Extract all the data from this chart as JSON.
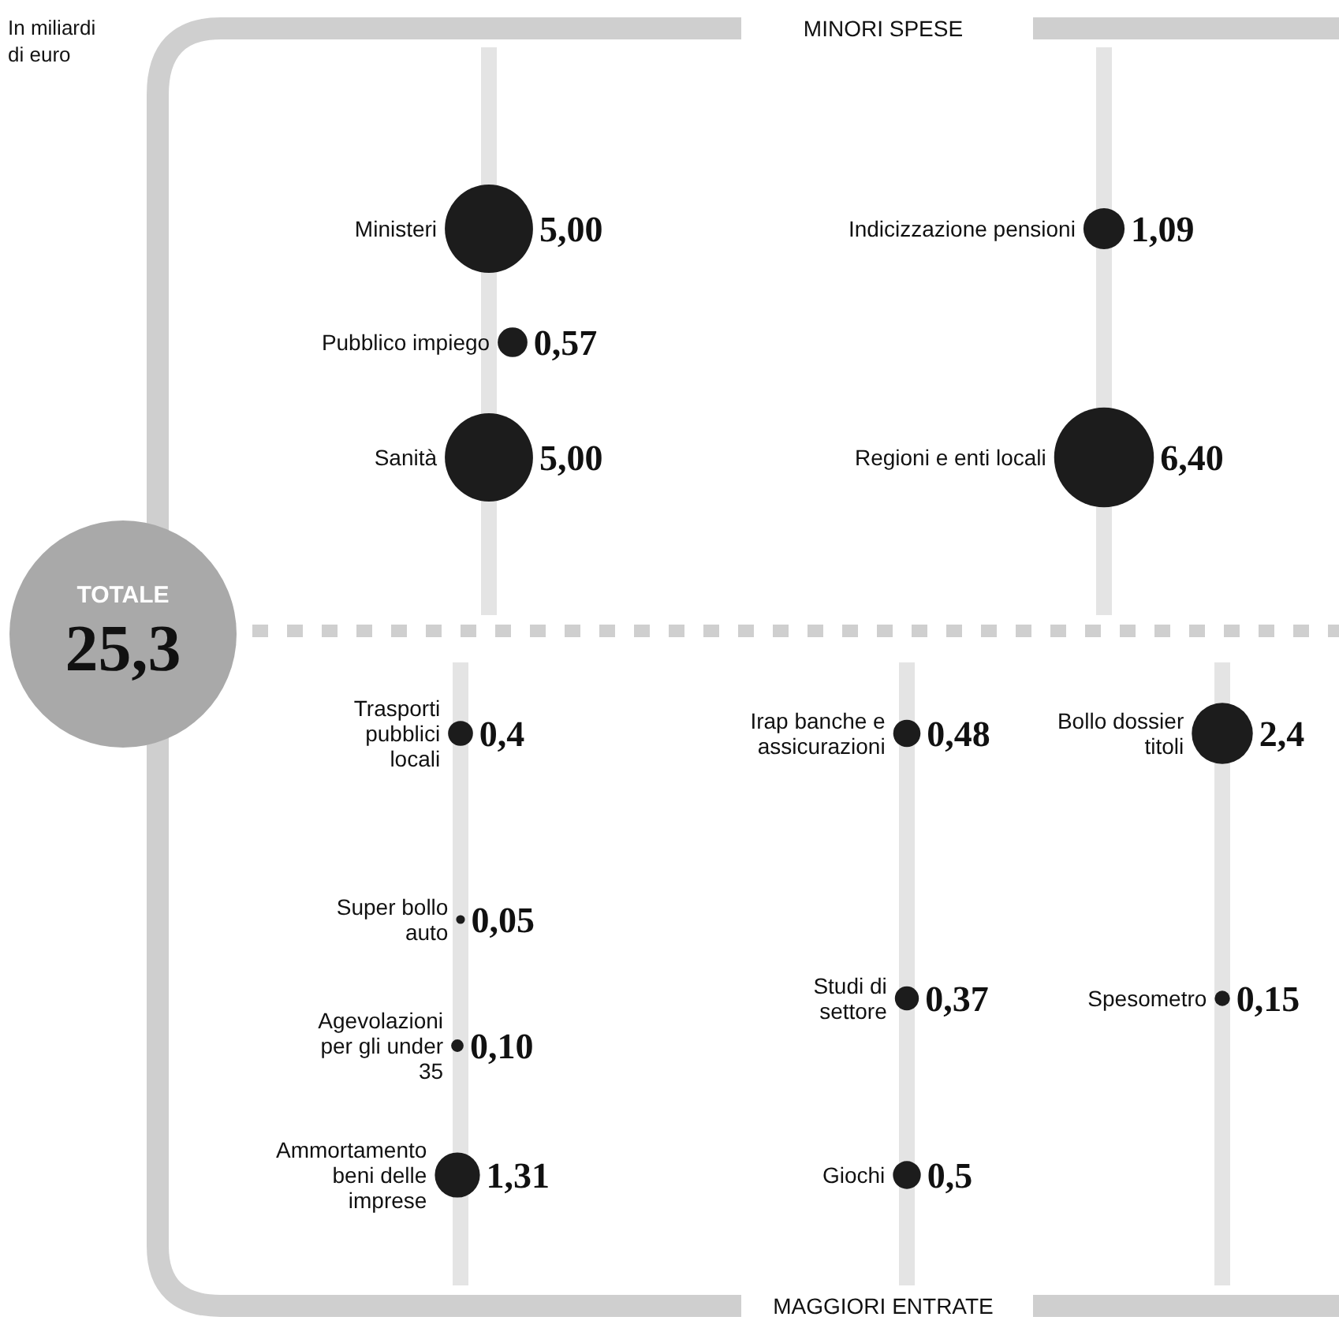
{
  "chart_data": [
    {
      "type": "other",
      "title": "In miliardi di euro",
      "subtitle": "MINORI SPESE",
      "annotations": [
        "TOTALE",
        "25,3"
      ],
      "color": "#1c1c1c",
      "categories": [
        "Ministeri",
        "Indicizzazione pensioni",
        "Pubblico impiego",
        "Sanità",
        "Regioni e enti locali"
      ],
      "values": [
        5.0,
        1.09,
        0.57,
        5.0,
        6.4
      ],
      "value_labels": [
        "5,00",
        "1,09",
        "0,57",
        "5,00",
        "6,40"
      ]
    },
    {
      "type": "other",
      "subtitle": "MAGGIORI ENTRATE",
      "color": "#1c1c1c",
      "categories": [
        "Trasporti pubblici locali",
        "Irap banche e assicurazioni",
        "Bollo dossier titoli",
        "Super bollo auto",
        "Studi di settore",
        "Spesometro",
        "Agevolazioni per gli under 35",
        "Ammortamento beni delle imprese",
        "Giochi"
      ],
      "values": [
        0.4,
        0.48,
        2.4,
        0.05,
        0.37,
        0.15,
        0.1,
        1.31,
        0.5
      ],
      "value_labels": [
        "0,4",
        "0,48",
        "2,4",
        "0,05",
        "0,37",
        "0,15",
        "0,10",
        "1,31",
        "0,5"
      ]
    }
  ]
}
